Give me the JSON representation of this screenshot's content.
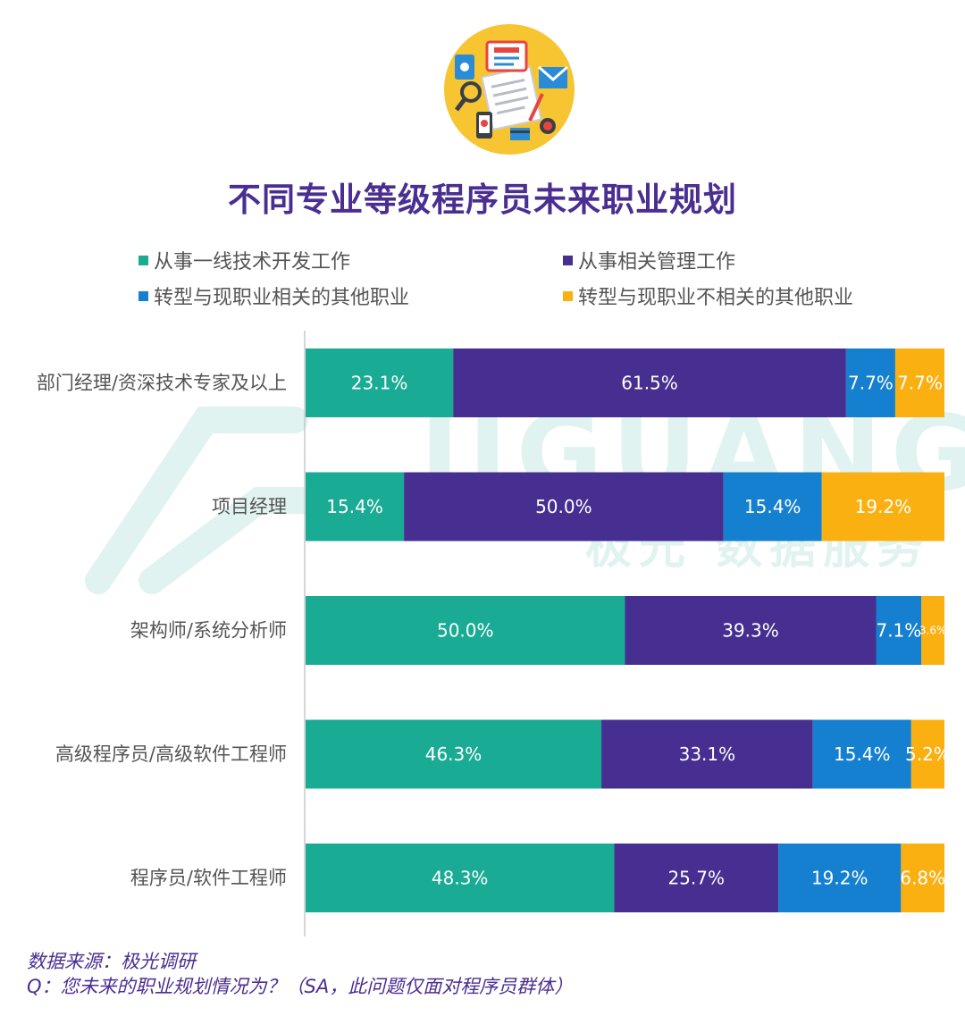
{
  "title": "不同专业等级程序员未来职业规划",
  "legend": [
    {
      "label": "从事一线技术开发工作",
      "color": "#1aab94"
    },
    {
      "label": "从事相关管理工作",
      "color": "#472f91"
    },
    {
      "label": "转型与现职业相关的其他职业",
      "color": "#1580cf"
    },
    {
      "label": "转型与现职业不相关的其他职业",
      "color": "#fbb012"
    }
  ],
  "watermark": {
    "brand": "JIGUANG",
    "sub": "极光 数据服务"
  },
  "source": "数据来源：极光调研",
  "question": "Q：您未来的职业规划情况为？（SA，此问题仅面对程序员群体）",
  "chart_data": {
    "type": "bar",
    "orientation": "horizontal",
    "stacked": true,
    "xlim": [
      0,
      100
    ],
    "categories": [
      "部门经理/资深技术专家及以上",
      "项目经理",
      "架构师/系统分析师",
      "高级程序员/高级软件工程师",
      "程序员/软件工程师"
    ],
    "series": [
      {
        "name": "从事一线技术开发工作",
        "color": "#1aab94",
        "values": [
          23.1,
          15.4,
          50.0,
          46.3,
          48.3
        ],
        "labels": [
          "23.1%",
          "15.4%",
          "50.0%",
          "46.3%",
          "48.3%"
        ]
      },
      {
        "name": "从事相关管理工作",
        "color": "#472f91",
        "values": [
          61.5,
          50.0,
          39.3,
          33.1,
          25.7
        ],
        "labels": [
          "61.5%",
          "50.0%",
          "39.3%",
          "33.1%",
          "25.7%"
        ]
      },
      {
        "name": "转型与现职业相关的其他职业",
        "color": "#1580cf",
        "values": [
          7.7,
          15.4,
          7.1,
          15.4,
          19.2
        ],
        "labels": [
          "7.7%",
          "15.4%",
          "7.1%",
          "15.4%",
          "19.2%"
        ]
      },
      {
        "name": "转型与现职业不相关的其他职业",
        "color": "#fbb012",
        "values": [
          7.7,
          19.2,
          3.6,
          5.2,
          6.8
        ],
        "labels": [
          "7.7%",
          "19.2%",
          "3.6%",
          "5.2%",
          "6.8%"
        ]
      }
    ],
    "grid": false,
    "legend_position": "top"
  }
}
